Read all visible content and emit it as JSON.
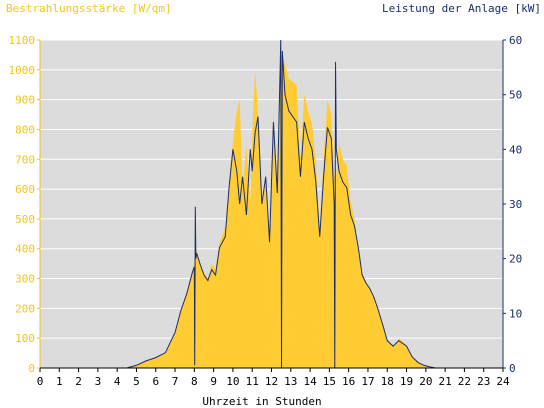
{
  "colors": {
    "background": "#ffffff",
    "plot_area": "#dcdcdc",
    "irradiance_fill": "#ffcc33",
    "power_line": "#1a2e6e",
    "left_axis_text": "#f5c518",
    "right_axis_text": "#1a2e6e",
    "grid": "#ffffff"
  },
  "chart_data": {
    "type": "area",
    "title_left": "Bestrahlungsstärke [W/qm]",
    "title_right": "Leistung der Anlage [kW]",
    "xlabel": "Uhrzeit in Stunden",
    "xlim": [
      0,
      24
    ],
    "ylim_left": [
      0,
      1100
    ],
    "ylim_right": [
      0,
      60
    ],
    "x_ticks": [
      0,
      1,
      2,
      3,
      4,
      5,
      6,
      7,
      8,
      9,
      10,
      11,
      12,
      13,
      14,
      15,
      16,
      17,
      18,
      19,
      20,
      21,
      22,
      23,
      24
    ],
    "y_ticks_left": [
      0,
      100,
      200,
      300,
      400,
      500,
      600,
      700,
      800,
      900,
      1000,
      1100
    ],
    "y_ticks_right": [
      0,
      10,
      20,
      30,
      40,
      50,
      60
    ],
    "series": [
      {
        "name": "Bestrahlungsstärke",
        "axis": "left",
        "x": [
          0,
          4.5,
          5,
          5.5,
          6,
          6.5,
          7,
          7.3,
          7.6,
          7.9,
          8.05,
          8.1,
          8.3,
          8.5,
          8.7,
          8.9,
          9.1,
          9.3,
          9.6,
          9.8,
          10,
          10.2,
          10.35,
          10.5,
          10.7,
          10.9,
          11,
          11.15,
          11.3,
          11.5,
          11.7,
          11.9,
          12.1,
          12.3,
          12.5,
          12.7,
          12.9,
          13.1,
          13.3,
          13.5,
          13.7,
          13.9,
          14.1,
          14.3,
          14.5,
          14.7,
          14.9,
          15.1,
          15.3,
          15.5,
          15.7,
          15.9,
          16.1,
          16.3,
          16.5,
          16.7,
          16.9,
          17.1,
          17.3,
          17.5,
          17.8,
          18,
          18.3,
          18.6,
          19,
          19.3,
          19.6,
          19.9,
          20.2,
          20.5,
          24
        ],
        "y": [
          0,
          0,
          10,
          25,
          35,
          50,
          120,
          190,
          250,
          330,
          360,
          400,
          350,
          320,
          300,
          350,
          330,
          420,
          470,
          620,
          760,
          860,
          900,
          600,
          750,
          550,
          780,
          1000,
          860,
          550,
          650,
          420,
          860,
          600,
          1050,
          1020,
          970,
          960,
          950,
          700,
          920,
          860,
          820,
          690,
          460,
          700,
          900,
          850,
          600,
          760,
          700,
          680,
          560,
          500,
          400,
          320,
          290,
          270,
          240,
          200,
          140,
          95,
          70,
          100,
          75,
          40,
          20,
          10,
          3,
          0,
          0
        ]
      },
      {
        "name": "Leistung der Anlage",
        "axis": "right",
        "x": [
          0,
          4.5,
          5,
          5.5,
          6,
          6.5,
          7,
          7.3,
          7.6,
          7.9,
          8.0,
          8.02,
          8.05,
          8.08,
          8.12,
          8.3,
          8.5,
          8.7,
          8.9,
          9.1,
          9.3,
          9.6,
          9.8,
          10,
          10.2,
          10.35,
          10.5,
          10.7,
          10.9,
          11,
          11.15,
          11.3,
          11.5,
          11.7,
          11.9,
          12.1,
          12.3,
          12.45,
          12.48,
          12.52,
          12.56,
          12.7,
          12.9,
          13.1,
          13.3,
          13.5,
          13.7,
          13.9,
          14.1,
          14.3,
          14.5,
          14.7,
          14.9,
          15.1,
          15.25,
          15.28,
          15.32,
          15.36,
          15.5,
          15.7,
          15.9,
          16.1,
          16.3,
          16.5,
          16.7,
          16.9,
          17.1,
          17.3,
          17.5,
          17.8,
          18,
          18.3,
          18.6,
          19,
          19.3,
          19.6,
          19.9,
          20.2,
          20.5,
          24
        ],
        "y": [
          0,
          0,
          0.5,
          1.3,
          1.9,
          2.8,
          6.5,
          10.5,
          13.5,
          17.5,
          18.5,
          0.5,
          29.5,
          20,
          21,
          19,
          17,
          16,
          18,
          17,
          22,
          24,
          33,
          40,
          36,
          30,
          35,
          28,
          40,
          36,
          43,
          46,
          30,
          35,
          23,
          45,
          32,
          55,
          60,
          0,
          58,
          50,
          47,
          46,
          45,
          35,
          45,
          42,
          40,
          34,
          24,
          35,
          44,
          42,
          30,
          0,
          56,
          40,
          36,
          34,
          33,
          28,
          26,
          22,
          17,
          15.5,
          14.5,
          13,
          11,
          7.5,
          5,
          4,
          5,
          4,
          2,
          1,
          0.5,
          0.2,
          0,
          0
        ]
      }
    ]
  }
}
